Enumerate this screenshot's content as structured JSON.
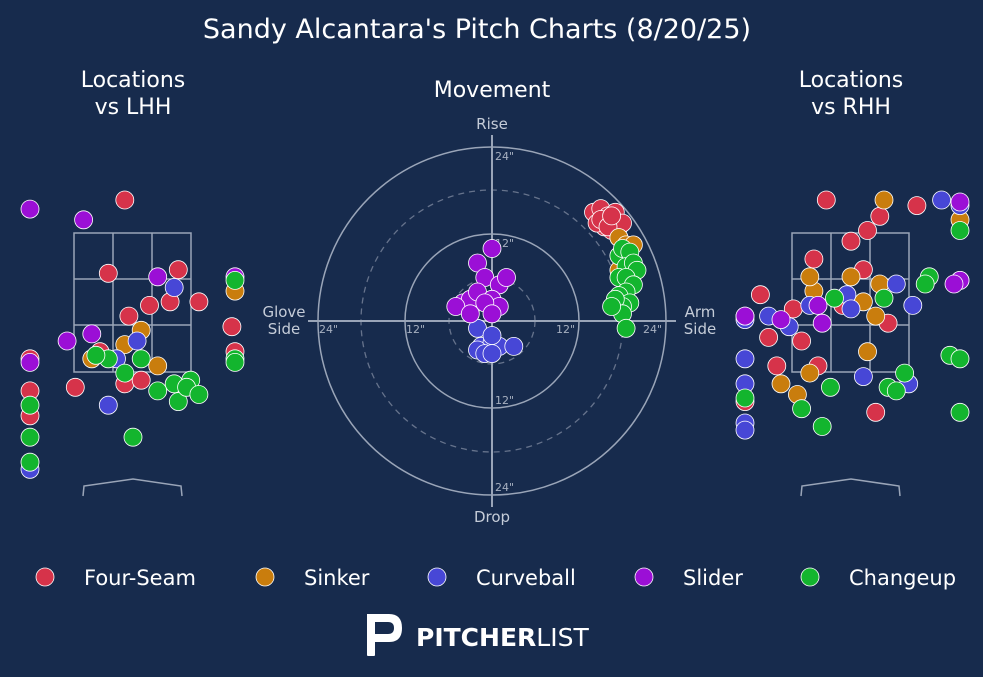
{
  "title": "Sandy Alcantara's Pitch Charts (8/20/25)",
  "colors": {
    "background": "#172b4d",
    "Four-Seam": "#d6334a",
    "Sinker": "#c97d0d",
    "Curveball": "#4747d6",
    "Slider": "#9b0fd6",
    "Changeup": "#13b52e"
  },
  "logo": {
    "bold": "PITCHER",
    "light": "LIST"
  },
  "legend": [
    "Four-Seam",
    "Sinker",
    "Curveball",
    "Slider",
    "Changeup"
  ],
  "chart_data": [
    {
      "type": "scatter",
      "title": "Locations\nvs LHH",
      "xlabel": "",
      "ylabel": "",
      "xlim": [
        -2.4,
        2.4
      ],
      "ylim": [
        0,
        5
      ],
      "grid": false,
      "legend": "bottom",
      "series": [
        {
          "name": "Four-Seam",
          "points": [
            [
              -0.1,
              3.95
            ],
            [
              -0.3,
              2.9
            ],
            [
              0.2,
              2.45
            ],
            [
              0.55,
              2.95
            ],
            [
              0.8,
              2.5
            ],
            [
              1.2,
              2.15
            ],
            [
              1.5,
              1.8
            ],
            [
              -1.9,
              1.7
            ],
            [
              -0.7,
              1.3
            ],
            [
              -0.1,
              1.35
            ],
            [
              -1.6,
              1.25
            ],
            [
              -1.95,
              0.9
            ],
            [
              0.1,
              1.4
            ],
            [
              -0.05,
              2.3
            ],
            [
              0.45,
              2.5
            ],
            [
              -0.4,
              1.8
            ]
          ]
        },
        {
          "name": "Sinker",
          "points": [
            [
              -0.1,
              1.9
            ],
            [
              -0.5,
              1.7
            ],
            [
              0.3,
              1.6
            ],
            [
              2.2,
              2.65
            ],
            [
              0.1,
              2.1
            ]
          ]
        },
        {
          "name": "Curveball",
          "points": [
            [
              -2.0,
              0.15
            ],
            [
              -0.3,
              1.05
            ],
            [
              0.5,
              2.7
            ],
            [
              0.05,
              1.95
            ],
            [
              -0.2,
              1.7
            ]
          ]
        },
        {
          "name": "Slider",
          "points": [
            [
              -1.9,
              3.8
            ],
            [
              -0.6,
              3.65
            ],
            [
              0.3,
              2.85
            ],
            [
              1.4,
              2.85
            ],
            [
              -1.75,
              1.65
            ],
            [
              -0.8,
              1.95
            ],
            [
              -0.5,
              2.05
            ]
          ]
        },
        {
          "name": "Changeup",
          "points": [
            [
              1.7,
              2.8
            ],
            [
              1.35,
              1.7
            ],
            [
              1.45,
              1.65
            ],
            [
              0.7,
              1.4
            ],
            [
              0.5,
              1.35
            ],
            [
              0.3,
              1.25
            ],
            [
              0.55,
              1.1
            ],
            [
              0.65,
              1.3
            ],
            [
              0.8,
              1.2
            ],
            [
              -0.1,
              1.5
            ],
            [
              -1.4,
              1.05
            ],
            [
              -1.8,
              0.6
            ],
            [
              -1.9,
              0.25
            ],
            [
              0.0,
              0.6
            ],
            [
              -0.3,
              1.7
            ],
            [
              -0.45,
              1.75
            ],
            [
              0.1,
              1.7
            ]
          ]
        }
      ]
    },
    {
      "type": "scatter",
      "title": "Movement",
      "xlabel": "",
      "ylabel": "",
      "xlim": [
        -24,
        24
      ],
      "ylim": [
        -24,
        24
      ],
      "axis_labels": {
        "top": "Rise",
        "bottom": "Drop",
        "left": "Glove\nSide",
        "right": "Arm\nSide"
      },
      "ring_labels": [
        "12\"",
        "24\""
      ],
      "grid": true,
      "series": [
        {
          "name": "Four-Seam",
          "points": [
            [
              14,
              15
            ],
            [
              15,
              15.5
            ],
            [
              16,
              14.5
            ],
            [
              17,
              14
            ],
            [
              17.5,
              13
            ],
            [
              15.5,
              13
            ],
            [
              16.5,
              12.5
            ],
            [
              14.5,
              13.5
            ],
            [
              17,
              15
            ],
            [
              18,
              13.5
            ],
            [
              15,
              14
            ],
            [
              16,
              13
            ],
            [
              17.5,
              11.5
            ],
            [
              16.5,
              14.5
            ]
          ]
        },
        {
          "name": "Sinker",
          "points": [
            [
              17.5,
              11.5
            ],
            [
              18.5,
              10.5
            ],
            [
              19.5,
              10.5
            ],
            [
              19,
              8
            ],
            [
              18,
              9
            ],
            [
              17.5,
              7
            ]
          ]
        },
        {
          "name": "Curveball",
          "points": [
            [
              -3,
              1.5
            ],
            [
              -2,
              -1
            ],
            [
              -1.5,
              -3.5
            ],
            [
              0,
              -3
            ],
            [
              -2,
              -4
            ],
            [
              1,
              -3.5
            ],
            [
              3,
              -3.5
            ],
            [
              0,
              -2
            ],
            [
              -1,
              -4.5
            ],
            [
              0,
              -4.5
            ]
          ]
        },
        {
          "name": "Slider",
          "points": [
            [
              0,
              10
            ],
            [
              -2,
              8
            ],
            [
              -1,
              6
            ],
            [
              1,
              5
            ],
            [
              2,
              6
            ],
            [
              -4,
              2.5
            ],
            [
              -3,
              3
            ],
            [
              -2,
              4
            ],
            [
              0,
              3
            ],
            [
              1,
              2
            ],
            [
              -5,
              2
            ],
            [
              -3,
              1
            ],
            [
              -1,
              2.5
            ],
            [
              0,
              1
            ]
          ]
        },
        {
          "name": "Changeup",
          "points": [
            [
              17.5,
              9
            ],
            [
              18,
              10
            ],
            [
              19,
              9.5
            ],
            [
              18.5,
              7.5
            ],
            [
              19.5,
              8
            ],
            [
              20,
              7
            ],
            [
              17.5,
              6
            ],
            [
              18.5,
              6
            ],
            [
              19.5,
              5
            ],
            [
              18.5,
              4
            ],
            [
              17.5,
              3.5
            ],
            [
              19,
              2.5
            ],
            [
              18,
              2
            ],
            [
              17,
              3
            ],
            [
              18,
              1
            ],
            [
              16.5,
              2
            ],
            [
              18.5,
              -1
            ]
          ]
        }
      ]
    },
    {
      "type": "scatter",
      "title": "Locations\nvs RHH",
      "xlabel": "",
      "ylabel": "",
      "xlim": [
        -2.4,
        2.4
      ],
      "ylim": [
        0,
        5
      ],
      "grid": false,
      "series": [
        {
          "name": "Four-Seam",
          "points": [
            [
              -0.3,
              4.0
            ],
            [
              0.2,
              3.5
            ],
            [
              0.35,
              3.7
            ],
            [
              0.8,
              3.85
            ],
            [
              0.0,
              3.35
            ],
            [
              -0.45,
              3.1
            ],
            [
              -1.1,
              2.6
            ],
            [
              -0.7,
              2.4
            ],
            [
              -1.0,
              2.0
            ],
            [
              -0.6,
              1.95
            ],
            [
              -0.4,
              1.6
            ],
            [
              -0.9,
              1.6
            ],
            [
              0.3,
              0.95
            ],
            [
              -1.45,
              1.1
            ],
            [
              0.15,
              2.95
            ],
            [
              -0.1,
              2.45
            ],
            [
              0.45,
              2.2
            ]
          ]
        },
        {
          "name": "Sinker",
          "points": [
            [
              0.4,
              3.95
            ],
            [
              1.6,
              3.65
            ],
            [
              0.0,
              2.85
            ],
            [
              -0.45,
              2.65
            ],
            [
              0.35,
              2.75
            ],
            [
              0.15,
              2.5
            ],
            [
              0.3,
              2.3
            ],
            [
              -0.5,
              2.85
            ],
            [
              0.2,
              1.8
            ],
            [
              -0.5,
              1.5
            ],
            [
              -0.85,
              1.35
            ],
            [
              -0.65,
              1.2
            ],
            [
              2.3,
              2.8
            ]
          ]
        },
        {
          "name": "Curveball",
          "points": [
            [
              1.1,
              3.95
            ],
            [
              1.95,
              3.85
            ],
            [
              0.55,
              2.75
            ],
            [
              -0.5,
              2.45
            ],
            [
              -1.0,
              2.3
            ],
            [
              -0.75,
              2.15
            ],
            [
              -1.65,
              2.25
            ],
            [
              -1.7,
              1.7
            ],
            [
              -1.9,
              1.35
            ],
            [
              -1.7,
              0.8
            ],
            [
              -1.65,
              0.7
            ],
            [
              0.15,
              1.45
            ],
            [
              0.7,
              1.35
            ],
            [
              -0.05,
              2.6
            ],
            [
              0.75,
              2.45
            ],
            [
              0.0,
              2.4
            ]
          ]
        },
        {
          "name": "Slider",
          "points": [
            [
              1.75,
              3.9
            ],
            [
              1.35,
              2.8
            ],
            [
              1.25,
              2.75
            ],
            [
              -2.3,
              2.3
            ],
            [
              -1.45,
              2.3
            ],
            [
              -0.85,
              2.25
            ],
            [
              -0.35,
              2.2
            ],
            [
              -0.4,
              2.45
            ]
          ]
        },
        {
          "name": "Changeup",
          "points": [
            [
              1.75,
              3.5
            ],
            [
              0.95,
              2.85
            ],
            [
              0.9,
              2.75
            ],
            [
              0.4,
              2.55
            ],
            [
              -0.2,
              2.55
            ],
            [
              0.65,
              1.5
            ],
            [
              0.45,
              1.3
            ],
            [
              0.55,
              1.25
            ],
            [
              1.2,
              1.75
            ],
            [
              2.0,
              1.7
            ],
            [
              -1.5,
              1.15
            ],
            [
              -0.25,
              1.3
            ],
            [
              -0.6,
              1.0
            ],
            [
              -0.35,
              0.75
            ],
            [
              1.35,
              0.95
            ]
          ]
        }
      ]
    }
  ]
}
